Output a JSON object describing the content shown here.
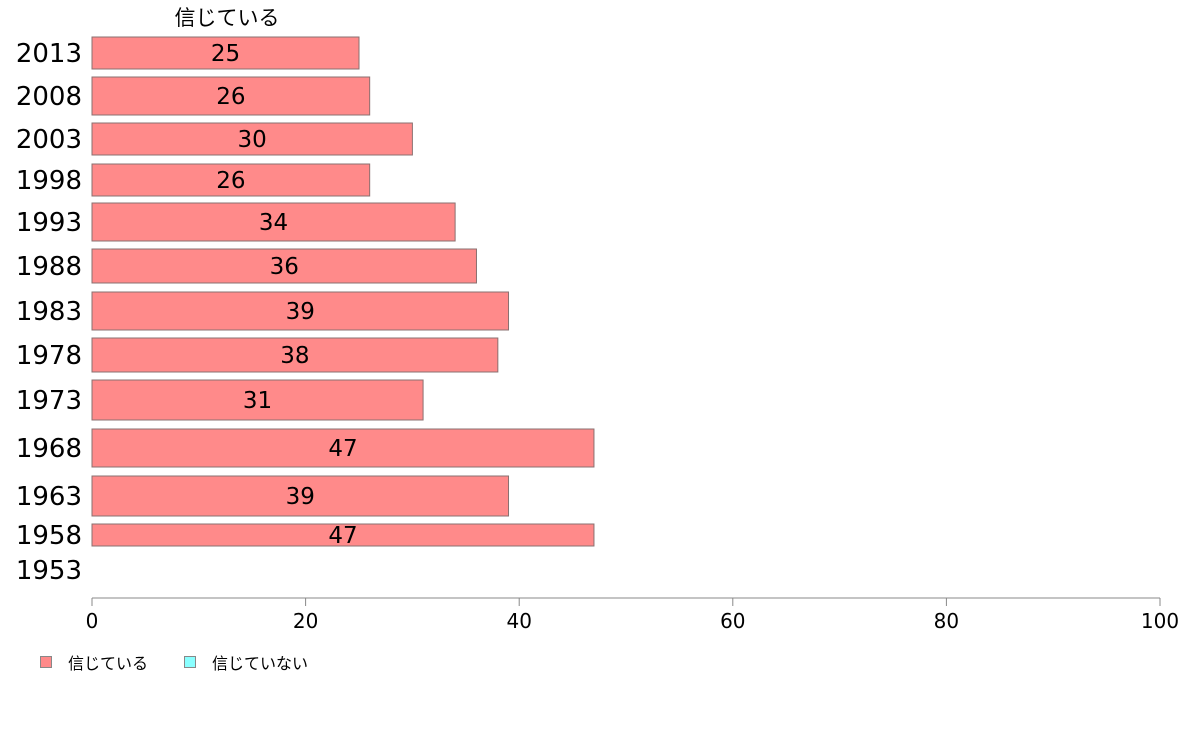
{
  "chart_data": {
    "type": "bar",
    "orientation": "horizontal",
    "series_header": "信じている",
    "categories": [
      "2013",
      "2008",
      "2003",
      "1998",
      "1993",
      "1988",
      "1983",
      "1978",
      "1973",
      "1968",
      "1963",
      "1958",
      "1953"
    ],
    "series": [
      {
        "name": "信じている",
        "color": "#ff8a8a",
        "values": [
          25,
          26,
          30,
          26,
          34,
          36,
          39,
          38,
          31,
          47,
          39,
          47,
          null
        ]
      }
    ],
    "xlim": [
      0,
      100
    ],
    "xticks": [
      0,
      20,
      40,
      60,
      80,
      100
    ],
    "grid": false
  },
  "legend": [
    {
      "label": "信じている",
      "color": "#ff8a8a"
    },
    {
      "label": "信じていない",
      "color": "#8affff"
    }
  ]
}
